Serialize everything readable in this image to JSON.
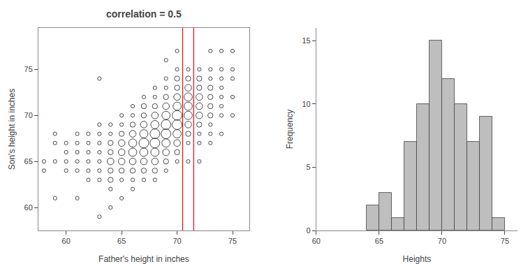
{
  "chart_data": [
    {
      "type": "scatter",
      "title": "correlation = 0.5",
      "xlabel": "Father's height in inches",
      "ylabel": "Son's height in inches",
      "x": [
        58,
        58,
        59,
        59,
        59,
        59,
        60,
        60,
        60,
        60,
        61,
        61,
        61,
        61,
        61,
        61,
        62,
        62,
        62,
        62,
        62,
        62,
        63,
        63,
        63,
        63,
        63,
        63,
        63,
        63,
        63,
        64,
        64,
        64,
        64,
        64,
        64,
        64,
        64,
        64,
        65,
        65,
        65,
        65,
        65,
        65,
        65,
        65,
        65,
        66,
        66,
        66,
        66,
        66,
        66,
        66,
        66,
        66,
        66,
        67,
        67,
        67,
        67,
        67,
        67,
        67,
        67,
        67,
        67,
        68,
        68,
        68,
        68,
        68,
        68,
        68,
        68,
        68,
        68,
        68,
        69,
        69,
        69,
        69,
        69,
        69,
        69,
        69,
        69,
        69,
        69,
        69,
        70,
        70,
        70,
        70,
        70,
        70,
        70,
        70,
        70,
        70,
        70,
        70,
        71,
        71,
        71,
        71,
        71,
        71,
        71,
        71,
        71,
        71,
        72,
        72,
        72,
        72,
        72,
        72,
        72,
        72,
        72,
        72,
        73,
        73,
        73,
        73,
        73,
        73,
        73,
        73,
        73,
        73,
        74,
        74,
        74,
        74,
        74,
        74,
        74,
        74,
        75,
        75,
        75,
        75,
        75
      ],
      "y": [
        64,
        65,
        61,
        65,
        67,
        68,
        64,
        65,
        66,
        67,
        61,
        64,
        65,
        66,
        67,
        68,
        63,
        64,
        65,
        66,
        67,
        68,
        59,
        63,
        64,
        65,
        66,
        67,
        68,
        69,
        74,
        60,
        62,
        63,
        64,
        65,
        66,
        67,
        68,
        69,
        61,
        63,
        64,
        65,
        66,
        67,
        68,
        69,
        70,
        62,
        63,
        64,
        65,
        66,
        67,
        68,
        69,
        70,
        71,
        63,
        64,
        65,
        66,
        67,
        68,
        69,
        70,
        71,
        72,
        63,
        64,
        65,
        66,
        67,
        68,
        69,
        70,
        71,
        72,
        73,
        64,
        65,
        66,
        67,
        68,
        69,
        70,
        71,
        72,
        73,
        74,
        76,
        65,
        66,
        67,
        68,
        69,
        70,
        71,
        72,
        73,
        74,
        75,
        77,
        65,
        67,
        68,
        69,
        70,
        71,
        72,
        73,
        74,
        75,
        65,
        67,
        68,
        69,
        70,
        71,
        72,
        73,
        74,
        75,
        67,
        68,
        69,
        70,
        71,
        72,
        73,
        74,
        75,
        77,
        68,
        70,
        71,
        72,
        73,
        74,
        75,
        77,
        70,
        72,
        74,
        75,
        77
      ],
      "sizes": [
        1,
        1,
        1,
        1,
        1,
        1,
        1,
        1,
        1,
        1,
        1,
        1,
        1,
        1,
        1,
        1,
        1,
        1,
        1,
        1,
        1,
        1,
        1,
        1,
        1,
        1,
        1,
        1,
        1,
        1,
        1,
        1,
        1,
        2,
        2,
        3,
        2,
        2,
        1,
        1,
        1,
        1,
        2,
        3,
        3,
        3,
        2,
        1,
        1,
        1,
        1,
        2,
        3,
        4,
        4,
        3,
        2,
        1,
        1,
        1,
        2,
        3,
        4,
        5,
        4,
        3,
        2,
        2,
        1,
        1,
        2,
        3,
        4,
        5,
        5,
        4,
        3,
        2,
        1,
        1,
        1,
        2,
        3,
        4,
        5,
        5,
        4,
        3,
        2,
        1,
        1,
        1,
        1,
        2,
        3,
        4,
        5,
        5,
        4,
        3,
        2,
        2,
        1,
        1,
        1,
        1,
        2,
        3,
        4,
        4,
        4,
        3,
        2,
        1,
        1,
        1,
        1,
        2,
        3,
        3,
        3,
        2,
        2,
        1,
        1,
        1,
        1,
        2,
        2,
        2,
        2,
        1,
        1,
        1,
        1,
        1,
        1,
        1,
        1,
        1,
        1,
        1,
        1,
        1,
        1,
        1,
        1
      ],
      "marker": "circle-open",
      "color": "black",
      "vlines": {
        "x": [
          70.5,
          71.5
        ],
        "color": "red"
      },
      "xlim": [
        57.5,
        76.5
      ],
      "ylim": [
        57.5,
        79.5
      ],
      "xticks": [
        60,
        65,
        70,
        75
      ],
      "yticks": [
        60,
        65,
        70,
        75
      ],
      "grid": false
    },
    {
      "type": "histogram",
      "xlabel": "Heights",
      "ylabel": "Frequency",
      "bins": [
        64,
        65,
        66,
        67,
        68,
        69,
        70,
        71,
        72,
        73,
        74,
        75
      ],
      "values": [
        2,
        3,
        1,
        7,
        10,
        15,
        12,
        10,
        7,
        9,
        1
      ],
      "color": "#bebebe",
      "xlim": [
        60,
        76
      ],
      "ylim": [
        0,
        16
      ],
      "xticks": [
        60,
        65,
        70,
        75
      ],
      "yticks": [
        0,
        5,
        10,
        15
      ],
      "grid": false
    }
  ]
}
